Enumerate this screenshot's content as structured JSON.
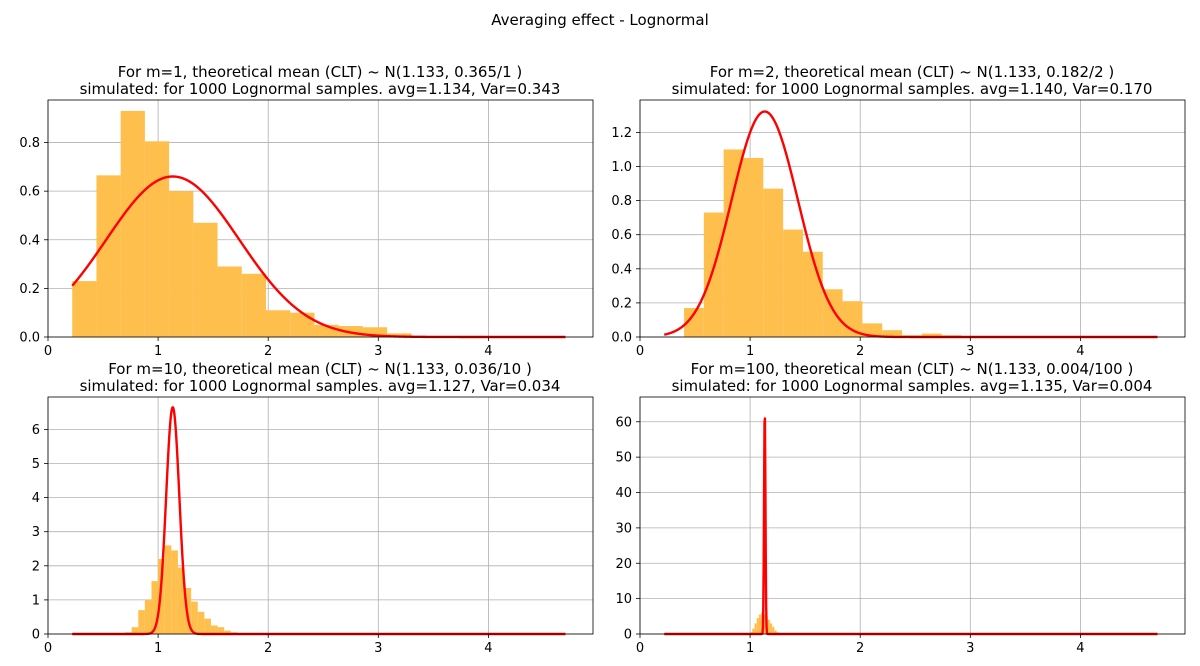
{
  "figure": {
    "suptitle": "Averaging effect - Lognormal",
    "colors": {
      "histogram": "#FFBF4D",
      "curve": "#FF0000",
      "grid": "#B0B0B0"
    }
  },
  "chart_data": [
    {
      "type": "bar",
      "title_line1": "For m=1, theoretical mean (CLT) ~ N(1.133, 0.365/1 )",
      "title_line2": "simulated: for 1000 Lognormal samples. avg=1.134, Var=0.343",
      "xlim": [
        0,
        4.95
      ],
      "ylim": [
        0,
        0.975
      ],
      "xticks": [
        0,
        1,
        2,
        3,
        4
      ],
      "yticks": [
        0.0,
        0.2,
        0.4,
        0.6,
        0.8
      ],
      "ytick_labels": [
        "0.0",
        "0.2",
        "0.4",
        "0.6",
        "0.8"
      ],
      "grid": true,
      "hist_bin_edges": [
        0.22,
        0.44,
        0.66,
        0.88,
        1.1,
        1.32,
        1.54,
        1.76,
        1.98,
        2.2,
        2.42,
        2.64,
        2.86,
        3.08,
        3.3,
        3.52,
        3.74,
        3.96,
        4.18,
        4.4,
        4.7
      ],
      "hist_heights": [
        0.23,
        0.665,
        0.93,
        0.805,
        0.6,
        0.47,
        0.29,
        0.26,
        0.11,
        0.1,
        0.05,
        0.045,
        0.04,
        0.015,
        0.005,
        0.005,
        0.005,
        0.003,
        0.003,
        0.002
      ],
      "normal_curve": {
        "mean": 1.133,
        "variance": 0.365,
        "x_range": [
          0.22,
          4.7
        ]
      }
    },
    {
      "type": "bar",
      "title_line1": "For m=2, theoretical mean (CLT) ~ N(1.133, 0.182/2 )",
      "title_line2": "simulated: for 1000 Lognormal samples. avg=1.140, Var=0.170",
      "xlim": [
        0,
        4.95
      ],
      "ylim": [
        0,
        1.39
      ],
      "xticks": [
        0,
        1,
        2,
        3,
        4
      ],
      "yticks": [
        0.0,
        0.2,
        0.4,
        0.6,
        0.8,
        1.0,
        1.2
      ],
      "ytick_labels": [
        "0.0",
        "0.2",
        "0.4",
        "0.6",
        "0.8",
        "1.0",
        "1.2"
      ],
      "grid": true,
      "hist_bin_edges": [
        0.4,
        0.58,
        0.76,
        0.94,
        1.12,
        1.3,
        1.48,
        1.66,
        1.84,
        2.02,
        2.2,
        2.38,
        2.56,
        2.74,
        2.92,
        3.1,
        3.3
      ],
      "hist_heights": [
        0.17,
        0.73,
        1.1,
        1.05,
        0.87,
        0.63,
        0.5,
        0.28,
        0.21,
        0.08,
        0.04,
        0.01,
        0.02,
        0.01,
        0.005,
        0.005
      ],
      "normal_curve": {
        "mean": 1.133,
        "variance": 0.091,
        "x_range": [
          0.22,
          4.7
        ]
      }
    },
    {
      "type": "bar",
      "title_line1": "For m=10, theoretical mean (CLT) ~ N(1.133, 0.036/10 )",
      "title_line2": "simulated: for 1000 Lognormal samples. avg=1.127, Var=0.034",
      "xlim": [
        0,
        4.95
      ],
      "ylim": [
        0,
        6.95
      ],
      "xticks": [
        0,
        1,
        2,
        3,
        4
      ],
      "yticks": [
        0,
        1,
        2,
        3,
        4,
        5,
        6
      ],
      "ytick_labels": [
        "0",
        "1",
        "2",
        "3",
        "4",
        "5",
        "6"
      ],
      "grid": true,
      "hist_bin_edges": [
        0.7,
        0.76,
        0.82,
        0.88,
        0.94,
        1.0,
        1.06,
        1.12,
        1.18,
        1.24,
        1.3,
        1.36,
        1.42,
        1.48,
        1.54,
        1.6,
        1.66,
        1.72
      ],
      "hist_heights": [
        0.05,
        0.2,
        0.7,
        1.0,
        1.55,
        2.2,
        2.6,
        2.45,
        1.95,
        1.35,
        0.95,
        0.65,
        0.45,
        0.25,
        0.2,
        0.1,
        0.05
      ],
      "normal_curve": {
        "mean": 1.133,
        "variance": 0.0036,
        "x_range": [
          0.22,
          4.7
        ]
      }
    },
    {
      "type": "bar",
      "title_line1": "For m=100, theoretical mean (CLT) ~ N(1.133, 0.004/100 )",
      "title_line2": "simulated: for 1000 Lognormal samples. avg=1.135, Var=0.004",
      "xlim": [
        0,
        4.95
      ],
      "ylim": [
        0,
        67
      ],
      "xticks": [
        0,
        1,
        2,
        3,
        4
      ],
      "yticks": [
        0,
        10,
        20,
        30,
        40,
        50,
        60
      ],
      "ytick_labels": [
        "0",
        "10",
        "20",
        "30",
        "40",
        "50",
        "60"
      ],
      "grid": true,
      "hist_bin_edges": [
        1.0,
        1.02,
        1.04,
        1.06,
        1.08,
        1.1,
        1.12,
        1.14,
        1.16,
        1.18,
        1.2,
        1.22,
        1.24,
        1.26
      ],
      "hist_heights": [
        0.5,
        1.5,
        3.0,
        4.5,
        5.5,
        6.0,
        5.5,
        5.0,
        4.0,
        3.0,
        2.0,
        1.0,
        0.5
      ],
      "normal_curve": {
        "mean": 1.133,
        "variance": 4e-05,
        "x_range": [
          0.22,
          4.7
        ]
      }
    }
  ]
}
